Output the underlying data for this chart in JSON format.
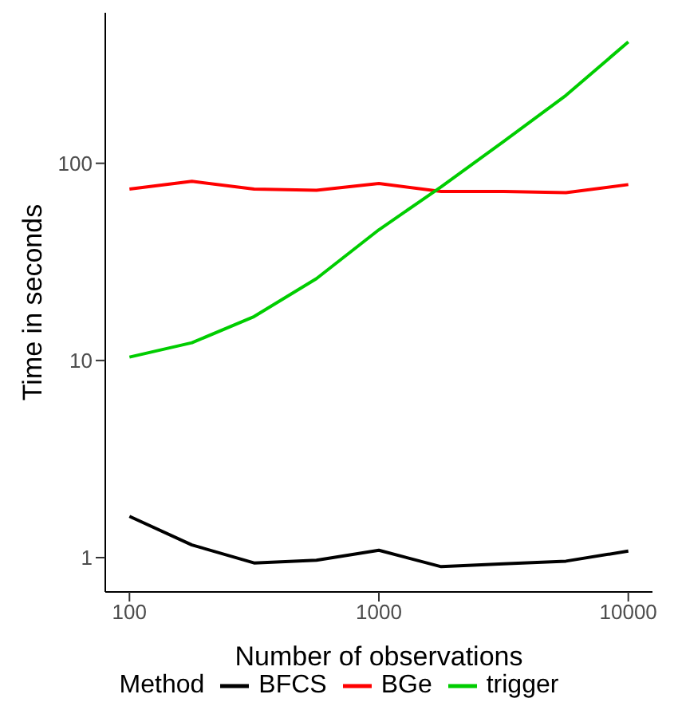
{
  "chart_data": {
    "type": "line",
    "xlabel": "Number of observations",
    "ylabel": "Time in seconds",
    "legend_title": "Method",
    "log": "xy",
    "grid": false,
    "legend": "bottom",
    "marker": "none",
    "line_style": "solid",
    "x": [
      100,
      178,
      316,
      562,
      1000,
      1778,
      3162,
      5623,
      10000
    ],
    "xlim": [
      80,
      12500
    ],
    "xticks": [
      100,
      1000,
      10000
    ],
    "ylim": [
      0.67,
      580
    ],
    "yticks": [
      1,
      10,
      100
    ],
    "series": [
      {
        "name": "BFCS",
        "color": "#000000",
        "values": [
          1.62,
          1.16,
          0.94,
          0.97,
          1.09,
          0.9,
          0.93,
          0.96,
          1.08
        ]
      },
      {
        "name": "BGe",
        "color": "#ff0000",
        "values": [
          74,
          81,
          74,
          73,
          79,
          72,
          72,
          71,
          78
        ]
      },
      {
        "name": "trigger",
        "color": "#00cd00",
        "values": [
          10.4,
          12.3,
          16.7,
          26,
          46,
          76,
          129,
          221,
          413
        ]
      }
    ]
  }
}
